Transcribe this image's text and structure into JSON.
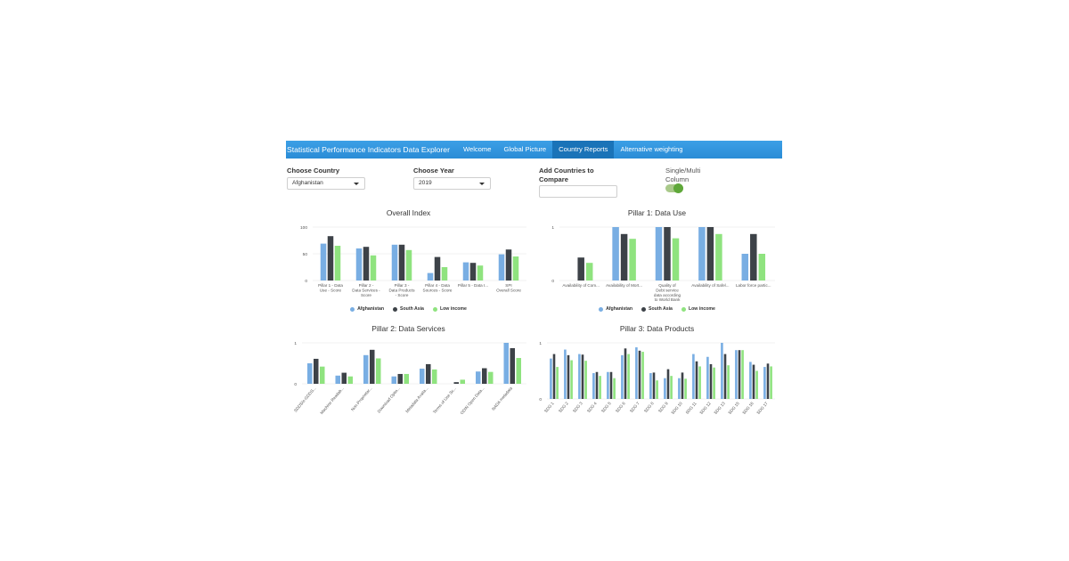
{
  "app": {
    "title": "Statistical Performance Indicators Data Explorer",
    "tabs": [
      {
        "label": "Welcome",
        "active": false
      },
      {
        "label": "Global Picture",
        "active": false
      },
      {
        "label": "Country Reports",
        "active": true
      },
      {
        "label": "Alternative weighting",
        "active": false
      }
    ],
    "accent": "#2a8cd6"
  },
  "controls": {
    "country_label": "Choose Country",
    "country_value": "Afghanistan",
    "year_label": "Choose Year",
    "year_value": "2019",
    "compare_label_1": "Add Countries to",
    "compare_label_2": "Compare",
    "compare_value": "",
    "toggle_label_1": "Single/Multi",
    "toggle_label_2": "Column",
    "toggle_on": true
  },
  "series_colors": {
    "Afghanistan": "#79aee3",
    "South Asia": "#3d4248",
    "Low income": "#8fe37f"
  },
  "legend": [
    "Afghanistan",
    "South Asia",
    "Low income"
  ],
  "chart_data": [
    {
      "type": "bar",
      "title": "Overall Index",
      "categories": [
        [
          "Pillar 1 - Data",
          "Use - Score"
        ],
        [
          "Pillar 2 -",
          "Data Services -",
          "Score"
        ],
        [
          "Pillar 3 -",
          "Data Products",
          "- Score"
        ],
        [
          "Pillar 4 - Data",
          "Sources - Score"
        ],
        [
          "Pillar 5 - Data I..."
        ],
        [
          "SPI",
          "Overall Score"
        ]
      ],
      "yticks": [
        "100",
        "50",
        "0"
      ],
      "ylim": [
        0,
        100
      ],
      "series": [
        {
          "name": "Afghanistan",
          "values": [
            69,
            60,
            67,
            14,
            34,
            49
          ]
        },
        {
          "name": "South Asia",
          "values": [
            83,
            63,
            67,
            44,
            33,
            58
          ]
        },
        {
          "name": "Low income",
          "values": [
            65,
            47,
            57,
            25,
            28,
            45
          ]
        }
      ]
    },
    {
      "type": "bar",
      "title": "Pillar 1: Data Use",
      "categories": [
        [
          "Availability of Com..."
        ],
        [
          "Availability of Mort..."
        ],
        [
          "Quality of",
          "Debt service",
          "data according",
          "to World Bank"
        ],
        [
          "Availability of Safel..."
        ],
        [
          "Labor force partic..."
        ]
      ],
      "yticks": [
        "1",
        "0"
      ],
      "ylim": [
        0,
        1
      ],
      "series": [
        {
          "name": "Afghanistan",
          "values": [
            0,
            1,
            1,
            1,
            0.5
          ]
        },
        {
          "name": "South Asia",
          "values": [
            0.43,
            0.87,
            1,
            1,
            0.87
          ]
        },
        {
          "name": "Low income",
          "values": [
            0.33,
            0.78,
            0.79,
            0.87,
            0.5
          ]
        }
      ]
    },
    {
      "type": "bar",
      "title": "Pillar 2: Data Services",
      "categories": [
        "SDDS/e-GDDS...",
        "Machine Readab...",
        "Non-Proprietar...",
        "Download Optio...",
        "Metadata Availa...",
        "Terms of Use Sc...",
        "ODIN Open Data...",
        "NADA metadata"
      ],
      "yticks": [
        "1",
        "0"
      ],
      "ylim": [
        0,
        1
      ],
      "series": [
        {
          "name": "Afghanistan",
          "values": [
            0.5,
            0.2,
            0.7,
            0.18,
            0.37,
            0,
            0.3,
            1
          ]
        },
        {
          "name": "South Asia",
          "values": [
            0.61,
            0.27,
            0.83,
            0.24,
            0.48,
            0.04,
            0.38,
            0.87
          ]
        },
        {
          "name": "Low income",
          "values": [
            0.42,
            0.18,
            0.62,
            0.24,
            0.35,
            0.1,
            0.29,
            0.63
          ]
        }
      ]
    },
    {
      "type": "bar",
      "title": "Pillar 3: Data Products",
      "categories": [
        "SDG 1",
        "SDG 2",
        "SDG 3",
        "SDG 4",
        "SDG 5",
        "SDG 6",
        "SDG 7",
        "SDG 8",
        "SDG 9",
        "SDG 10",
        "SDG 11",
        "SDG 12",
        "SDG 13",
        "SDG 15",
        "SDG 16",
        "SDG 17"
      ],
      "yticks": [
        "1",
        "0"
      ],
      "ylim": [
        0,
        1
      ],
      "series": [
        {
          "name": "Afghanistan",
          "values": [
            0.72,
            0.88,
            0.8,
            0.46,
            0.48,
            0.78,
            0.92,
            0.46,
            0.37,
            0.37,
            0.8,
            0.75,
            1,
            0.87,
            0.66,
            0.57
          ]
        },
        {
          "name": "South Asia",
          "values": [
            0.8,
            0.78,
            0.79,
            0.48,
            0.48,
            0.9,
            0.86,
            0.47,
            0.53,
            0.47,
            0.67,
            0.62,
            0.8,
            0.87,
            0.61,
            0.63
          ]
        },
        {
          "name": "Low income",
          "values": [
            0.57,
            0.69,
            0.68,
            0.41,
            0.37,
            0.8,
            0.84,
            0.33,
            0.41,
            0.36,
            0.58,
            0.56,
            0.6,
            0.87,
            0.5,
            0.58
          ]
        }
      ]
    }
  ]
}
